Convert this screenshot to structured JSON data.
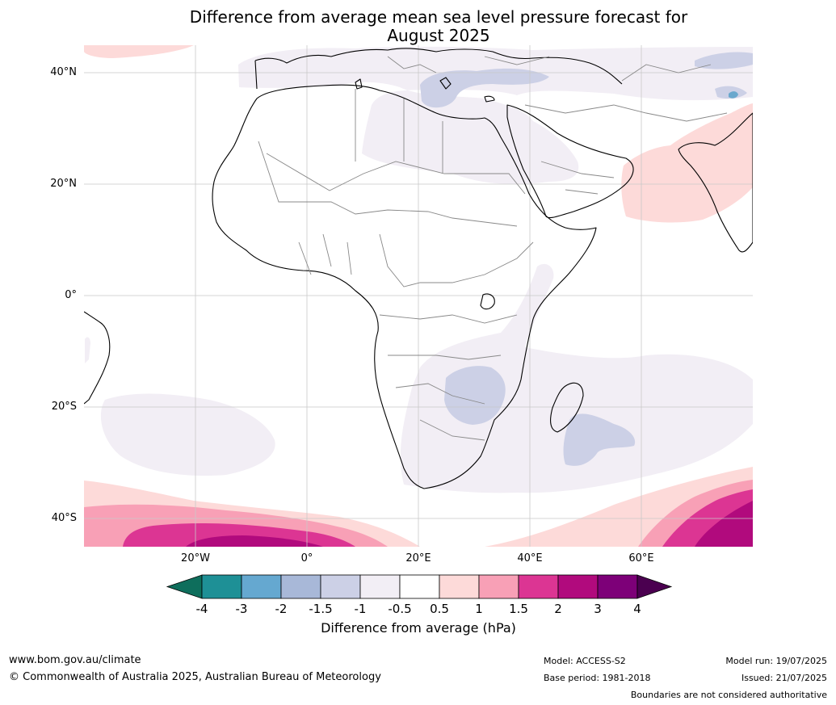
{
  "header": {
    "title_line1": "Difference from average mean sea level pressure forecast for",
    "title_line2": "August 2025"
  },
  "map": {
    "region": "Africa and Middle East",
    "lat_labels": [
      "40°N",
      "20°N",
      "0°",
      "20°S",
      "40°S"
    ],
    "lon_labels": [
      "20°W",
      "0°",
      "20°E",
      "40°E",
      "60°E"
    ],
    "colors": {
      "land": "#ffffff",
      "coastline": "#000000",
      "borders": "#888888",
      "grid": "#c8c8c8"
    }
  },
  "colorbar": {
    "tick_labels": [
      "-4",
      "-3",
      "-2",
      "-1.5",
      "-1",
      "-0.5",
      "0.5",
      "1",
      "1.5",
      "2",
      "3",
      "4"
    ],
    "colors": [
      "#0e6e5c",
      "#1e9096",
      "#65a8d0",
      "#a8b8d8",
      "#ccd0e6",
      "#f2eef5",
      "#ffffff",
      "#fddad9",
      "#f8a0b6",
      "#dc3593",
      "#b10a7d",
      "#7d0078",
      "#4b0050"
    ],
    "title": "Difference from average (hPa)"
  },
  "footer": {
    "url": "www.bom.gov.au/climate",
    "copyright": "© Commonwealth of Australia 2025, Australian Bureau of Meteorology",
    "model": "Model: ACCESS-S2",
    "base_period": "Base period: 1981-2018",
    "model_run": "Model run: 19/07/2025",
    "issued": "Issued: 21/07/2025",
    "disclaimer": "Boundaries are not considered authoritative"
  }
}
